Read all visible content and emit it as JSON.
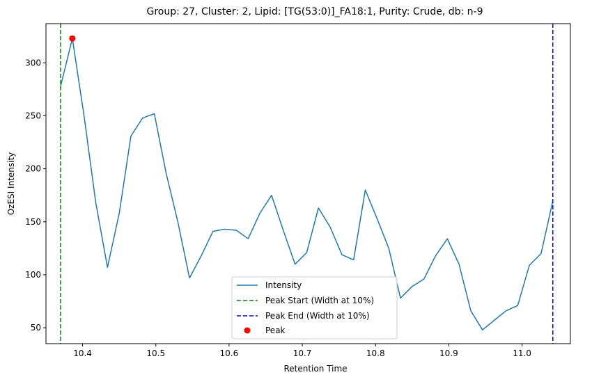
{
  "chart_data": {
    "type": "line",
    "title": "Group: 27, Cluster: 2, Lipid: [TG(53:0)]_FA18:1, Purity: Crude, db: n-9",
    "xlabel": "Retention Time",
    "ylabel": "OzESI Intensity",
    "xlim": [
      10.35,
      11.066
    ],
    "ylim": [
      35,
      337
    ],
    "xticks": [
      10.4,
      10.5,
      10.6,
      10.7,
      10.8,
      10.9,
      11.0
    ],
    "yticks": [
      50,
      100,
      150,
      200,
      250,
      300
    ],
    "xtick_labels": [
      "10.4",
      "10.5",
      "10.6",
      "10.7",
      "10.8",
      "10.9",
      "11.0"
    ],
    "ytick_labels": [
      "50",
      "100",
      "150",
      "200",
      "250",
      "300"
    ],
    "grid": false,
    "legend_position": "lower-center",
    "series": [
      {
        "name": "Intensity",
        "color": "#1f77b4",
        "style": "solid",
        "x": [
          10.37,
          10.386,
          10.402,
          10.418,
          10.434,
          10.45,
          10.466,
          10.482,
          10.498,
          10.514,
          10.53,
          10.546,
          10.562,
          10.578,
          10.594,
          10.61,
          10.626,
          10.642,
          10.658,
          10.674,
          10.69,
          10.706,
          10.722,
          10.738,
          10.754,
          10.77,
          10.786,
          10.802,
          10.818,
          10.834,
          10.85,
          10.866,
          10.882,
          10.898,
          10.914,
          10.93,
          10.946,
          10.962,
          10.978,
          10.994,
          11.01,
          11.026,
          11.042
        ],
        "y": [
          278,
          323,
          250,
          168,
          107,
          158,
          231,
          248,
          252,
          196,
          150,
          97,
          118,
          141,
          143,
          142,
          134,
          158,
          175,
          142,
          110,
          121,
          163,
          145,
          119,
          114,
          180,
          153,
          125,
          78,
          89,
          96,
          118,
          134,
          110,
          66,
          48,
          57,
          66,
          71,
          109,
          120,
          170
        ]
      }
    ],
    "vlines": [
      {
        "name": "Peak Start (Width at 10%)",
        "x": 10.37,
        "color": "#008000",
        "style": "dashed"
      },
      {
        "name": "Peak End (Width at 10%)",
        "x": 11.042,
        "color": "#0000ff",
        "style": "dashed"
      }
    ],
    "peak": {
      "name": "Peak",
      "x": 10.386,
      "y": 323,
      "color": "#ff0000"
    }
  }
}
